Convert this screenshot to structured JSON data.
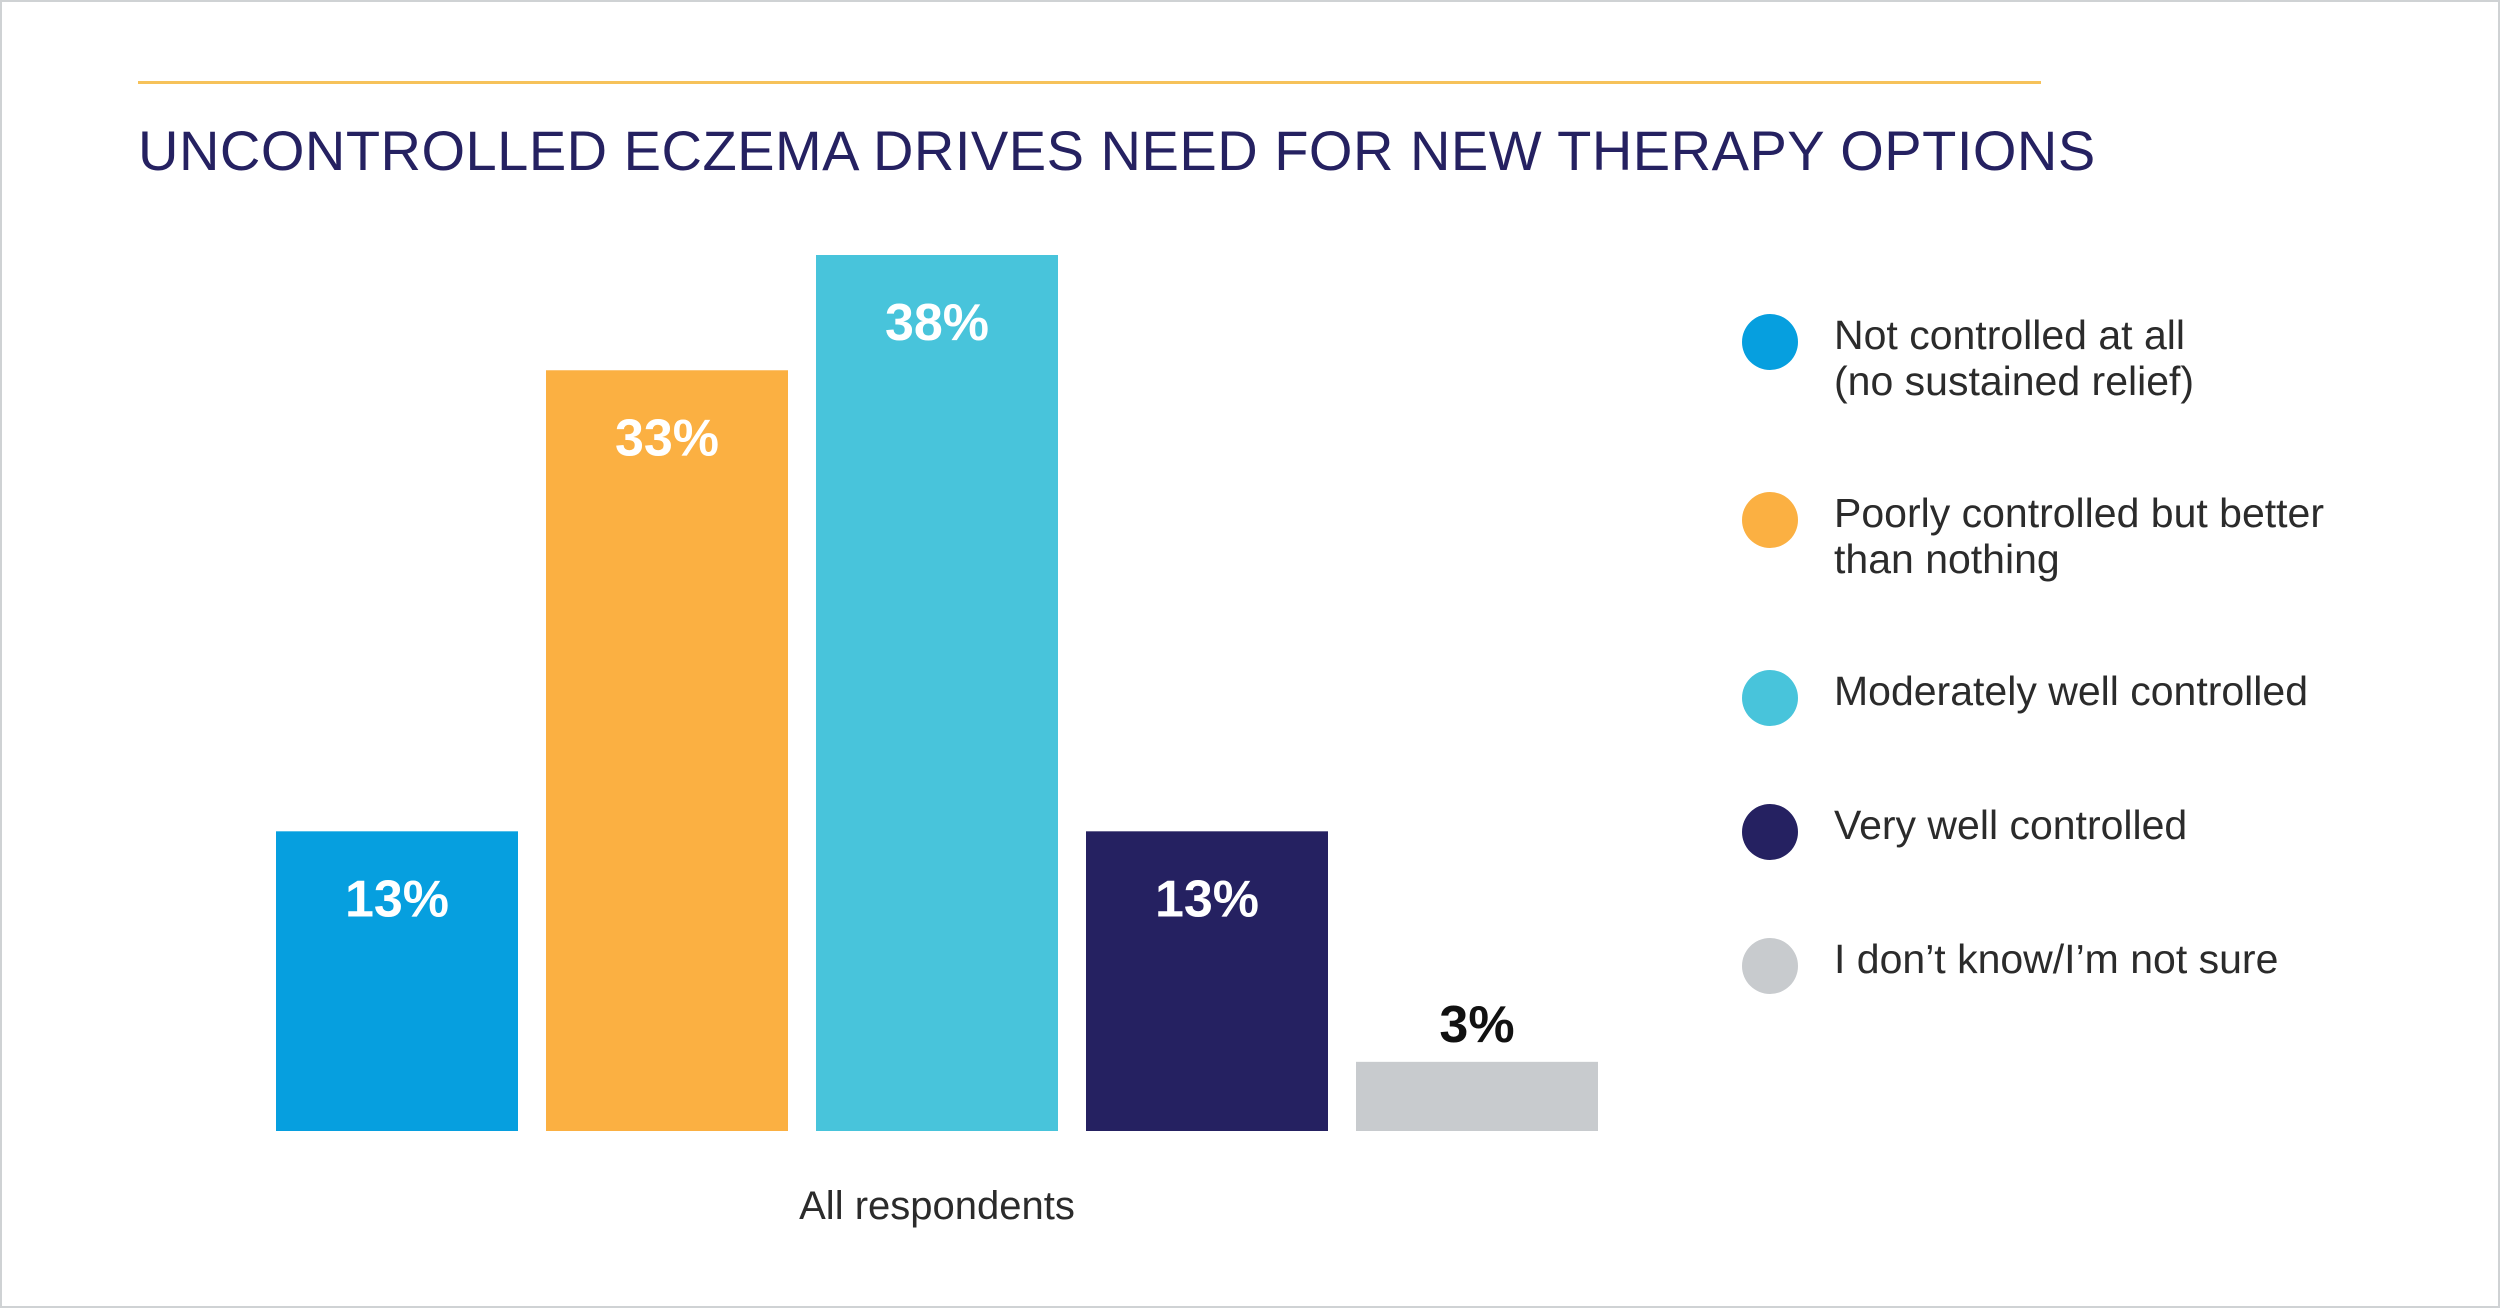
{
  "title": "UNCONTROLLED ECZEMA DRIVES NEED FOR NEW THERAPY OPTIONS",
  "chart_data": {
    "type": "bar",
    "categories": [
      "All respondents"
    ],
    "series": [
      {
        "name": "Not controlled at all (no sustained relief)",
        "value": 13,
        "label": "13%",
        "color": "#069fdf",
        "label_color": "#ffffff"
      },
      {
        "name": "Poorly controlled but better than nothing",
        "value": 33,
        "label": "33%",
        "color": "#fbb042",
        "label_color": "#ffffff"
      },
      {
        "name": "Moderately well controlled",
        "value": 38,
        "label": "38%",
        "color": "#48c4db",
        "label_color": "#ffffff"
      },
      {
        "name": "Very well controlled",
        "value": 13,
        "label": "13%",
        "color": "#252161",
        "label_color": "#ffffff"
      },
      {
        "name": "I don’t know/I’m not sure",
        "value": 3,
        "label": "3%",
        "color": "#c8cbce",
        "label_color": "#111111"
      }
    ],
    "ylim": [
      0,
      38
    ],
    "grid": false,
    "legend_position": "right"
  },
  "legend": [
    {
      "line1": "Not controlled at all",
      "line2": "(no sustained relief)",
      "color": "#069fdf"
    },
    {
      "line1": "Poorly controlled but better",
      "line2": "than nothing",
      "color": "#fbb042"
    },
    {
      "line1": "Moderately well controlled",
      "line2": "",
      "color": "#48c4db"
    },
    {
      "line1": "Very well controlled",
      "line2": "",
      "color": "#252161"
    },
    {
      "line1": "I don’t know/I’m not sure",
      "line2": "",
      "color": "#c8cbce"
    }
  ]
}
